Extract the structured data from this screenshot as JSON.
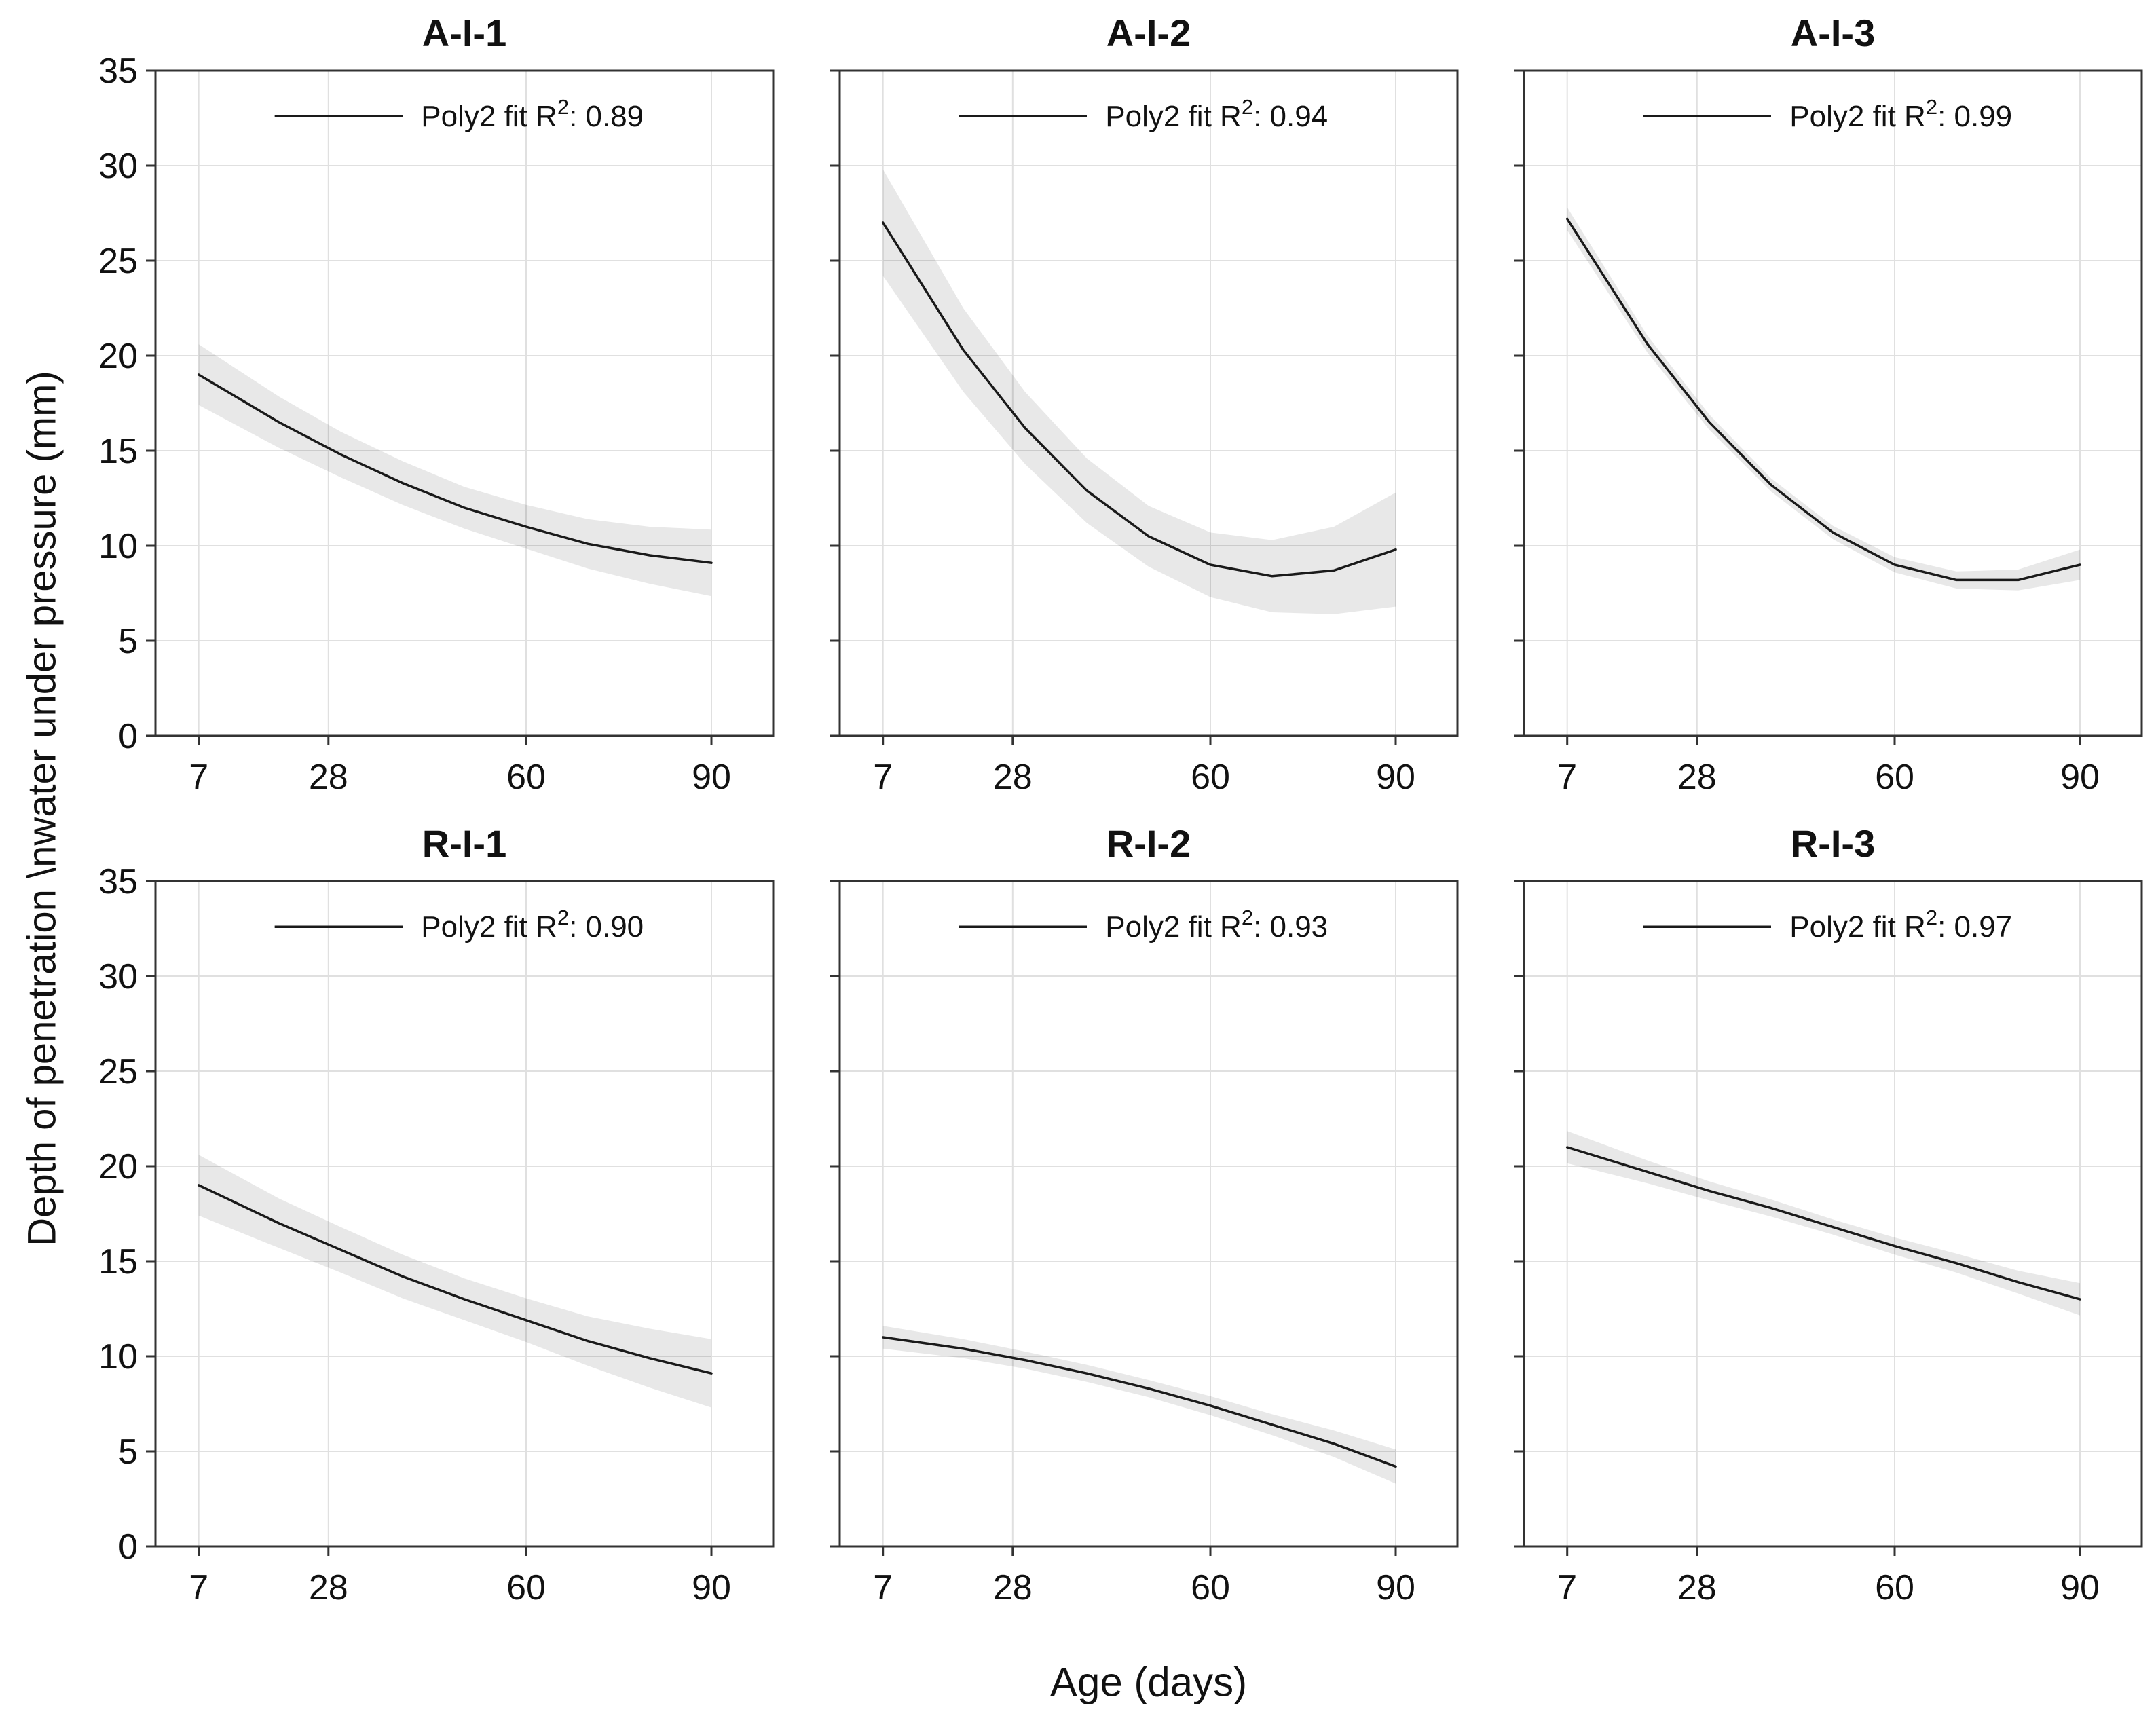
{
  "chart": {
    "xlabel": "Age (days)",
    "ylabel": "Depth of penetration \\nwater under pressure (mm)",
    "x_ticks": [
      7,
      28,
      60,
      90
    ],
    "y_ticks": [
      0,
      5,
      10,
      15,
      20,
      25,
      30,
      35
    ],
    "xlim": [
      0,
      100
    ],
    "ylim": [
      0,
      35
    ],
    "grid": true,
    "colors": {
      "fit_line": "#1a1a1a",
      "confidence_band": "rgba(0,0,0,0.09)",
      "grid_line": "#e0e0e0",
      "axis": "#333333",
      "text": "#111111"
    },
    "panels": [
      {
        "title": "A-I-1",
        "legend": {
          "prefix": "Poly2 fit R",
          "sup": "2",
          "suffix": ": 0.89",
          "r2": 0.89
        },
        "x": [
          7,
          20,
          30,
          40,
          50,
          60,
          70,
          80,
          90
        ],
        "fit": [
          19.0,
          16.5,
          14.8,
          13.3,
          12.0,
          11.0,
          10.1,
          9.5,
          9.1
        ],
        "band_upper": [
          20.6,
          17.85,
          16.0,
          14.45,
          13.1,
          12.15,
          11.4,
          11.0,
          10.85
        ],
        "band_lower": [
          17.4,
          15.15,
          13.6,
          12.15,
          10.9,
          9.85,
          8.8,
          8.0,
          7.35
        ]
      },
      {
        "title": "A-I-2",
        "legend": {
          "prefix": "Poly2 fit R",
          "sup": "2",
          "suffix": ": 0.94",
          "r2": 0.94
        },
        "x": [
          7,
          20,
          30,
          40,
          50,
          60,
          70,
          80,
          90
        ],
        "fit": [
          27.0,
          20.3,
          16.2,
          12.9,
          10.5,
          9.0,
          8.4,
          8.7,
          9.8
        ],
        "band_upper": [
          29.8,
          22.5,
          18.1,
          14.6,
          12.1,
          10.7,
          10.3,
          11.0,
          12.8
        ],
        "band_lower": [
          24.2,
          18.1,
          14.3,
          11.2,
          8.9,
          7.3,
          6.5,
          6.4,
          6.8
        ]
      },
      {
        "title": "A-I-3",
        "legend": {
          "prefix": "Poly2 fit R",
          "sup": "2",
          "suffix": ": 0.99",
          "r2": 0.99
        },
        "x": [
          7,
          20,
          30,
          40,
          50,
          60,
          70,
          80,
          90
        ],
        "fit": [
          27.2,
          20.6,
          16.5,
          13.2,
          10.7,
          9.0,
          8.2,
          8.2,
          9.0
        ],
        "band_upper": [
          27.8,
          21.05,
          16.9,
          13.55,
          11.05,
          9.4,
          8.65,
          8.75,
          9.8
        ],
        "band_lower": [
          26.6,
          20.15,
          16.1,
          12.85,
          10.35,
          8.6,
          7.75,
          7.65,
          8.2
        ]
      },
      {
        "title": "R-I-1",
        "legend": {
          "prefix": "Poly2 fit R",
          "sup": "2",
          "suffix": ": 0.90",
          "r2": 0.9
        },
        "x": [
          7,
          20,
          30,
          40,
          50,
          60,
          70,
          80,
          90
        ],
        "fit": [
          19.0,
          17.0,
          15.6,
          14.2,
          13.0,
          11.9,
          10.8,
          9.9,
          9.1
        ],
        "band_upper": [
          20.6,
          18.3,
          16.8,
          15.35,
          14.1,
          13.05,
          12.1,
          11.45,
          10.9
        ],
        "band_lower": [
          17.4,
          15.7,
          14.4,
          13.05,
          11.9,
          10.75,
          9.5,
          8.35,
          7.3
        ]
      },
      {
        "title": "R-I-2",
        "legend": {
          "prefix": "Poly2 fit R",
          "sup": "2",
          "suffix": ": 0.93",
          "r2": 0.93
        },
        "x": [
          7,
          20,
          30,
          40,
          50,
          60,
          70,
          80,
          90
        ],
        "fit": [
          11.0,
          10.4,
          9.8,
          9.1,
          8.3,
          7.4,
          6.4,
          5.4,
          4.2
        ],
        "band_upper": [
          11.6,
          10.9,
          10.25,
          9.55,
          8.75,
          7.9,
          6.95,
          6.1,
          5.1
        ],
        "band_lower": [
          10.4,
          9.9,
          9.35,
          8.65,
          7.85,
          6.9,
          5.85,
          4.7,
          3.3
        ]
      },
      {
        "title": "R-I-3",
        "legend": {
          "prefix": "Poly2 fit R",
          "sup": "2",
          "suffix": ": 0.97",
          "r2": 0.97
        },
        "x": [
          7,
          20,
          30,
          40,
          50,
          60,
          70,
          80,
          90
        ],
        "fit": [
          21.0,
          19.7,
          18.7,
          17.8,
          16.8,
          15.8,
          14.9,
          13.9,
          13.0
        ],
        "band_upper": [
          21.85,
          20.3,
          19.2,
          18.25,
          17.2,
          16.25,
          15.4,
          14.5,
          13.85
        ],
        "band_lower": [
          20.15,
          19.1,
          18.2,
          17.35,
          16.4,
          15.35,
          14.4,
          13.3,
          12.15
        ]
      }
    ],
    "chart_data": {
      "type": "line",
      "note": "2x3 grid of quadratic (Poly2) fit curves with confidence bands",
      "x_label": "Age (days)",
      "y_label": "Depth of penetration \\nwater under pressure (mm)",
      "x_tick_values": [
        7,
        28,
        60,
        90
      ],
      "y_range": [
        0,
        35
      ]
    }
  }
}
